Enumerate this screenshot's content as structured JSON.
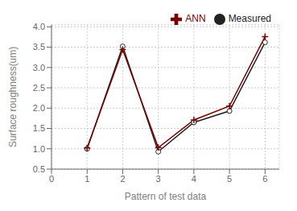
{
  "chart_data": {
    "type": "line",
    "x": [
      1,
      2,
      3,
      4,
      5,
      6
    ],
    "series": [
      {
        "name": "Measured",
        "color": "#222222",
        "marker": "o",
        "line_style": "solid",
        "values": [
          1.0,
          3.52,
          0.93,
          1.65,
          1.93,
          3.62
        ]
      },
      {
        "name": "ANN",
        "color": "#7a0000",
        "marker": "+",
        "line_style": "solid",
        "values": [
          1.02,
          3.44,
          1.03,
          1.71,
          2.05,
          3.76
        ]
      }
    ],
    "xlabel": "Pattern of test data",
    "ylabel": "Surface roughness(um)",
    "xlim": [
      0,
      6.4
    ],
    "ylim": [
      0.5,
      4.05
    ],
    "xticks": [
      0,
      1,
      2,
      3,
      4,
      5,
      6
    ],
    "yticks": [
      0.5,
      {
        "value": 1.0,
        "label": "1.0"
      },
      1.5,
      {
        "value": 2.0,
        "label": "2.0"
      },
      2.5,
      {
        "value": 3.0,
        "label": "3.0"
      },
      3.5,
      {
        "value": 4.0,
        "label": "4.0"
      }
    ],
    "grid": true,
    "legend": "upper right"
  }
}
